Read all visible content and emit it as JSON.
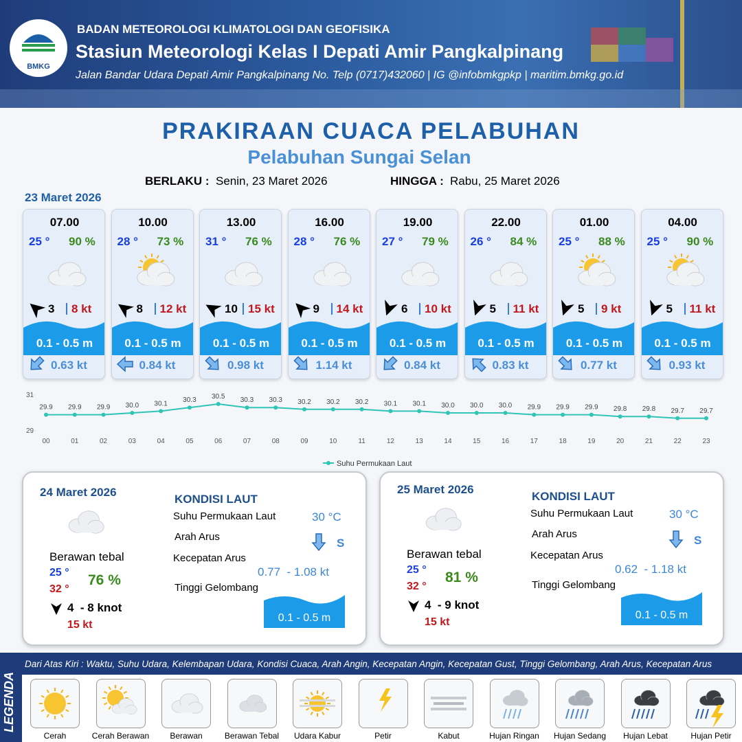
{
  "header": {
    "org": "BADAN METEOROLOGI KLIMATOLOGI DAN GEOFISIKA",
    "station": "Stasiun Meteorologi Kelas I Depati Amir Pangkalpinang",
    "address": "Jalan Bandar Udara Depati Amir Pangkalpinang No. Telp (0717)432060 | IG @infobmkgpkp | maritim.bmkg.go.id",
    "logo": "BMKG"
  },
  "title": "PRAKIRAAN CUACA PELABUHAN",
  "subtitle": "Pelabuhan Sungai Selan",
  "valid": {
    "from_label": "BERLAKU :",
    "from": "Senin, 23 Maret 2026",
    "to_label": "HINGGA :",
    "to": "Rabu, 25 Maret 2026"
  },
  "day1": {
    "date": "23 Maret 2026",
    "slots": [
      {
        "time": "07.00",
        "temp": "25 °",
        "rh": "90 %",
        "wind": "3",
        "gust": "8 kt",
        "wave": "0.1 - 0.5 m",
        "current": "0.63 kt"
      },
      {
        "time": "10.00",
        "temp": "28 °",
        "rh": "73 %",
        "wind": "8",
        "gust": "12 kt",
        "wave": "0.1 - 0.5 m",
        "current": "0.84 kt"
      },
      {
        "time": "13.00",
        "temp": "31 °",
        "rh": "76 %",
        "wind": "10",
        "gust": "15 kt",
        "wave": "0.1 - 0.5 m",
        "current": "0.98 kt"
      },
      {
        "time": "16.00",
        "temp": "28 °",
        "rh": "76 %",
        "wind": "9",
        "gust": "14 kt",
        "wave": "0.1 - 0.5 m",
        "current": "1.14 kt"
      },
      {
        "time": "19.00",
        "temp": "27 °",
        "rh": "79 %",
        "wind": "6",
        "gust": "10 kt",
        "wave": "0.1 - 0.5 m",
        "current": "0.84 kt"
      },
      {
        "time": "22.00",
        "temp": "26 °",
        "rh": "84 %",
        "wind": "5",
        "gust": "11 kt",
        "wave": "0.1 - 0.5 m",
        "current": "0.83 kt"
      },
      {
        "time": "01.00",
        "temp": "25 °",
        "rh": "88 %",
        "wind": "5",
        "gust": "9 kt",
        "wave": "0.1 - 0.5 m",
        "current": "0.77 kt"
      },
      {
        "time": "04.00",
        "temp": "25 °",
        "rh": "90 %",
        "wind": "5",
        "gust": "11 kt",
        "wave": "0.1 - 0.5 m",
        "current": "0.93 kt"
      }
    ]
  },
  "chart_data": {
    "type": "line",
    "categories": [
      "00",
      "01",
      "02",
      "03",
      "04",
      "05",
      "06",
      "07",
      "08",
      "09",
      "10",
      "11",
      "12",
      "13",
      "14",
      "15",
      "16",
      "17",
      "18",
      "19",
      "20",
      "21",
      "22",
      "23"
    ],
    "series": [
      {
        "name": "Suhu Permukaan Laut",
        "color": "#2ec4b6",
        "values": [
          29.9,
          29.9,
          29.9,
          30.0,
          30.1,
          30.3,
          30.5,
          30.3,
          30.3,
          30.2,
          30.2,
          30.2,
          30.1,
          30.1,
          30.0,
          30.0,
          30.0,
          29.9,
          29.9,
          29.9,
          29.8,
          29.8,
          29.7,
          29.7
        ],
        "value_labels": [
          "29.9",
          "29.9",
          "29.9",
          "30.0",
          "30.1",
          "30.3",
          "30.5",
          "30.3",
          "30.3",
          "30.2",
          "30.2",
          "30.2",
          "30.1",
          "30.1",
          "30.0",
          "30.0",
          "30.0",
          "29.9",
          "29.9",
          "29.9",
          "29.8",
          "29.8",
          "29.7",
          "29.7"
        ]
      }
    ],
    "ylim": [
      29,
      31
    ],
    "yticks": [
      29,
      31
    ],
    "legend": "bottom"
  },
  "days": [
    {
      "date": "24 Maret 2026",
      "condition": "Berawan tebal",
      "tmin": "25 °",
      "tmax": "32 °",
      "rh": "76 %",
      "wind": "4  - 8 knot",
      "gust": "15 kt",
      "sea_title": "KONDISI LAUT",
      "sst_label": "Suhu Permukaan Laut",
      "sst": "30 °C",
      "dir_label": "Arah Arus",
      "dir": "S",
      "speed_label": "Kecepatan Arus",
      "speed": "0.77  - 1.08 kt",
      "wave_label": "Tinggi Gelombang",
      "wave": "0.1 - 0.5 m"
    },
    {
      "date": "25 Maret 2026",
      "condition": "Berawan tebal",
      "tmin": "25 °",
      "tmax": "32 °",
      "rh": "81 %",
      "wind": "4  - 9 knot",
      "gust": "15 kt",
      "sea_title": "KONDISI LAUT",
      "sst_label": "Suhu Permukaan Laut",
      "sst": "30 °C",
      "dir_label": "Arah Arus",
      "dir": "S",
      "speed_label": "Kecepatan Arus",
      "speed": "0.62  - 1.18 kt",
      "wave_label": "Tinggi Gelombang",
      "wave": "0.1 - 0.5 m"
    }
  ],
  "legend": {
    "title": "LEGENDA",
    "description": "Dari Atas Kiri : Waktu, Suhu Udara, Kelembapan Udara, Kondisi Cuaca, Arah Angin, Kecepatan Angin, Kecepatan Gust, Tinggi Gelombang, Arah Arus, Kecepatan Arus",
    "items": [
      "Cerah",
      "Cerah Berawan",
      "Berawan",
      "Berawan Tebal",
      "Udara Kabur",
      "Petir",
      "Kabut",
      "Hujan Ringan",
      "Hujan Sedang",
      "Hujan Lebat",
      "Hujan Petir"
    ]
  }
}
